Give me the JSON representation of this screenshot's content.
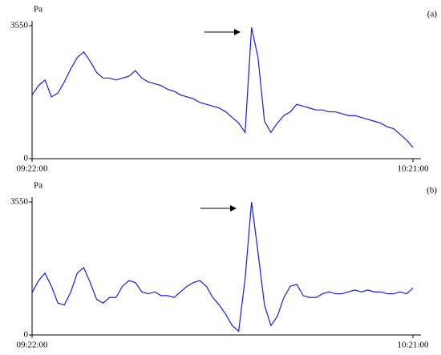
{
  "chart_data": [
    {
      "type": "line",
      "label": "(a)",
      "ylabel": "Pa",
      "color": "#1a1ae0",
      "x": [
        "09:22:00",
        "09:23:00",
        "09:24:00",
        "09:25:00",
        "09:26:00",
        "09:27:00",
        "09:28:00",
        "09:29:00",
        "09:30:00",
        "09:31:00",
        "09:32:00",
        "09:33:00",
        "09:34:00",
        "09:35:00",
        "09:36:00",
        "09:37:00",
        "09:38:00",
        "09:39:00",
        "09:40:00",
        "09:41:00",
        "09:42:00",
        "09:43:00",
        "09:44:00",
        "09:45:00",
        "09:46:00",
        "09:47:00",
        "09:48:00",
        "09:49:00",
        "09:50:00",
        "09:51:00",
        "09:52:00",
        "09:53:00",
        "09:54:00",
        "09:55:00",
        "09:56:00",
        "09:57:00",
        "09:58:00",
        "09:59:00",
        "10:00:00",
        "10:01:00",
        "10:02:00",
        "10:03:00",
        "10:04:00",
        "10:05:00",
        "10:06:00",
        "10:07:00",
        "10:08:00",
        "10:09:00",
        "10:10:00",
        "10:11:00",
        "10:12:00",
        "10:13:00",
        "10:14:00",
        "10:15:00",
        "10:16:00",
        "10:17:00",
        "10:18:00",
        "10:19:00",
        "10:20:00",
        "10:21:00"
      ],
      "values": [
        1700,
        1950,
        2100,
        1650,
        1750,
        2050,
        2400,
        2700,
        2850,
        2600,
        2300,
        2150,
        2150,
        2100,
        2150,
        2200,
        2350,
        2150,
        2050,
        2000,
        1950,
        1850,
        1800,
        1700,
        1650,
        1600,
        1500,
        1450,
        1400,
        1350,
        1250,
        1100,
        950,
        700,
        3500,
        2700,
        1000,
        700,
        950,
        1150,
        1250,
        1450,
        1400,
        1350,
        1300,
        1300,
        1250,
        1250,
        1200,
        1150,
        1150,
        1100,
        1050,
        1000,
        950,
        850,
        800,
        650,
        500,
        300
      ],
      "xlim": [
        "09:22:00",
        "10:21:00"
      ],
      "xticks": [
        "09:22:00",
        "10:21:00"
      ],
      "ylim": [
        0,
        3550
      ],
      "yticks": [
        0,
        3550
      ]
    },
    {
      "type": "line",
      "label": "(b)",
      "ylabel": "Pa",
      "color": "#1a1ae0",
      "x": [
        "09:22:00",
        "09:23:00",
        "09:24:00",
        "09:25:00",
        "09:26:00",
        "09:27:00",
        "09:28:00",
        "09:29:00",
        "09:30:00",
        "09:31:00",
        "09:32:00",
        "09:33:00",
        "09:34:00",
        "09:35:00",
        "09:36:00",
        "09:37:00",
        "09:38:00",
        "09:39:00",
        "09:40:00",
        "09:41:00",
        "09:42:00",
        "09:43:00",
        "09:44:00",
        "09:45:00",
        "09:46:00",
        "09:47:00",
        "09:48:00",
        "09:49:00",
        "09:50:00",
        "09:51:00",
        "09:52:00",
        "09:53:00",
        "09:54:00",
        "09:55:00",
        "09:56:00",
        "09:57:00",
        "09:58:00",
        "09:59:00",
        "10:00:00",
        "10:01:00",
        "10:02:00",
        "10:03:00",
        "10:04:00",
        "10:05:00",
        "10:06:00",
        "10:07:00",
        "10:08:00",
        "10:09:00",
        "10:10:00",
        "10:11:00",
        "10:12:00",
        "10:13:00",
        "10:14:00",
        "10:15:00",
        "10:16:00",
        "10:17:00",
        "10:18:00",
        "10:19:00",
        "10:20:00",
        "10:21:00"
      ],
      "values": [
        1130,
        1450,
        1650,
        1300,
        850,
        800,
        1150,
        1650,
        1800,
        1400,
        950,
        850,
        1000,
        1000,
        1300,
        1450,
        1400,
        1150,
        1100,
        1150,
        1050,
        1050,
        1000,
        1150,
        1300,
        1400,
        1450,
        1300,
        1000,
        800,
        550,
        250,
        100,
        1500,
        3550,
        2200,
        800,
        250,
        500,
        1000,
        1300,
        1350,
        1050,
        1000,
        1000,
        1100,
        1150,
        1100,
        1100,
        1150,
        1200,
        1150,
        1200,
        1150,
        1150,
        1100,
        1100,
        1150,
        1100,
        1250
      ],
      "xlim": [
        "09:22:00",
        "10:21:00"
      ],
      "xticks": [
        "09:22:00",
        "10:21:00"
      ],
      "ylim": [
        0,
        3550
      ],
      "yticks": [
        0,
        3550
      ]
    }
  ]
}
